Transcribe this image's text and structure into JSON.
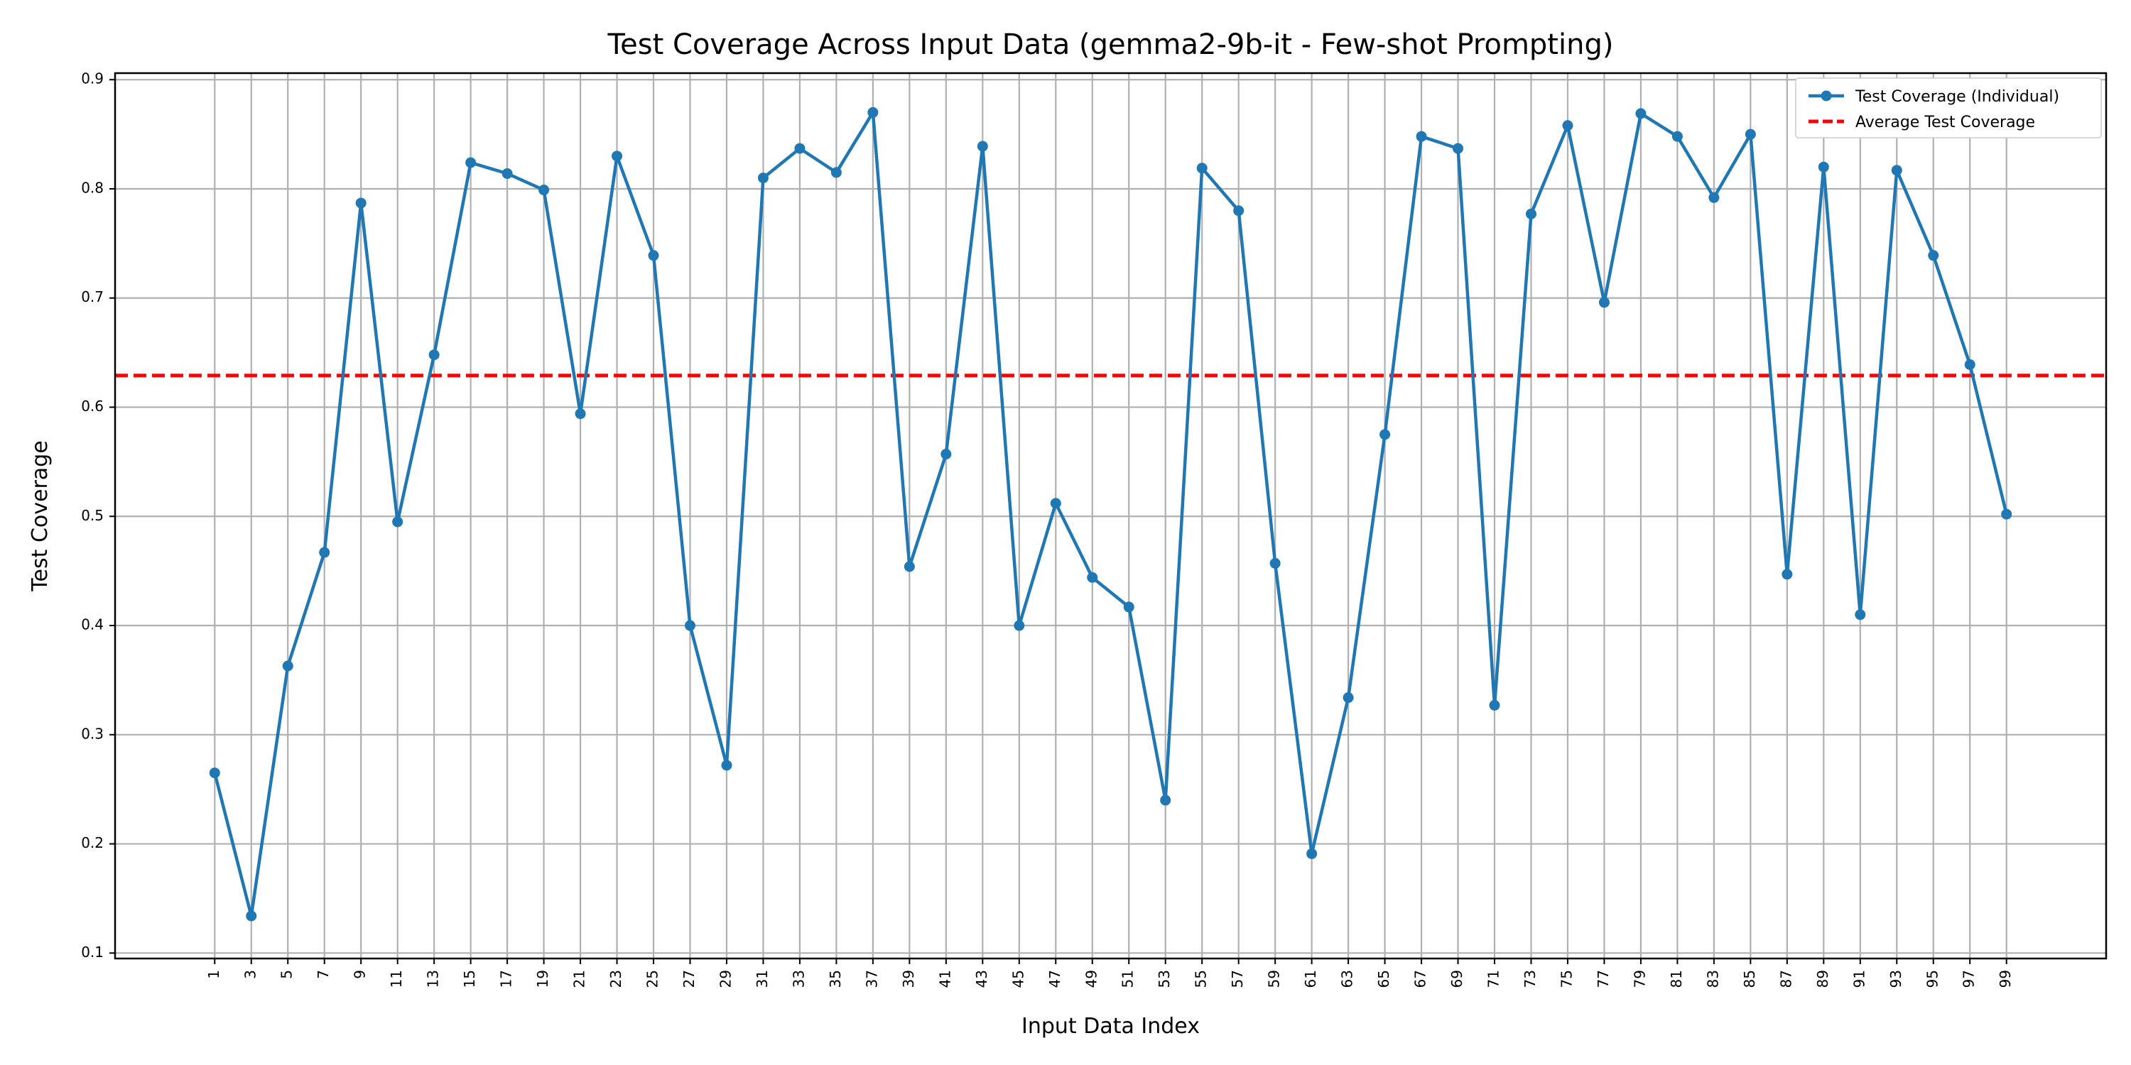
{
  "chart_data": {
    "type": "line",
    "title": "Test Coverage Across Input Data (gemma2-9b-it - Few-shot Prompting)",
    "xlabel": "Input Data Index",
    "ylabel": "Test Coverage",
    "x": [
      1,
      3,
      5,
      7,
      9,
      11,
      13,
      15,
      17,
      19,
      21,
      23,
      25,
      27,
      29,
      31,
      33,
      35,
      37,
      39,
      41,
      43,
      45,
      47,
      49,
      51,
      53,
      55,
      57,
      59,
      61,
      63,
      65,
      67,
      69,
      71,
      73,
      75,
      77,
      79,
      81,
      83,
      85,
      87,
      89,
      91,
      93,
      95,
      97,
      99
    ],
    "xticks": [
      "1",
      "3",
      "5",
      "7",
      "9",
      "11",
      "13",
      "15",
      "17",
      "19",
      "21",
      "23",
      "25",
      "27",
      "29",
      "31",
      "33",
      "35",
      "37",
      "39",
      "41",
      "43",
      "45",
      "47",
      "49",
      "51",
      "53",
      "55",
      "57",
      "59",
      "61",
      "63",
      "65",
      "67",
      "69",
      "71",
      "73",
      "75",
      "77",
      "79",
      "81",
      "83",
      "85",
      "87",
      "89",
      "91",
      "93",
      "95",
      "97",
      "99"
    ],
    "xlim": [
      -4.45,
      104.45
    ],
    "ylim": [
      0.095,
      0.906
    ],
    "yticks": [
      "0.1",
      "0.2",
      "0.3",
      "0.4",
      "0.5",
      "0.6",
      "0.7",
      "0.8",
      "0.9"
    ],
    "grid": true,
    "legend_position": "top-right",
    "series": [
      {
        "name": "Test Coverage (Individual)",
        "color": "#1f77b4",
        "style": "solid-with-markers",
        "values": [
          0.265,
          0.134,
          0.363,
          0.467,
          0.787,
          0.495,
          0.648,
          0.824,
          0.814,
          0.799,
          0.594,
          0.83,
          0.739,
          0.4,
          0.272,
          0.81,
          0.837,
          0.815,
          0.87,
          0.454,
          0.557,
          0.839,
          0.4,
          0.512,
          0.444,
          0.417,
          0.24,
          0.819,
          0.78,
          0.457,
          0.191,
          0.334,
          0.575,
          0.848,
          0.837,
          0.327,
          0.777,
          0.858,
          0.696,
          0.869,
          0.848,
          0.792,
          0.85,
          0.447,
          0.82,
          0.41,
          0.817,
          0.739,
          0.639,
          0.502
        ]
      },
      {
        "name": "Average Test Coverage",
        "color": "#ff0000",
        "style": "dashed",
        "value": 0.629
      }
    ]
  }
}
